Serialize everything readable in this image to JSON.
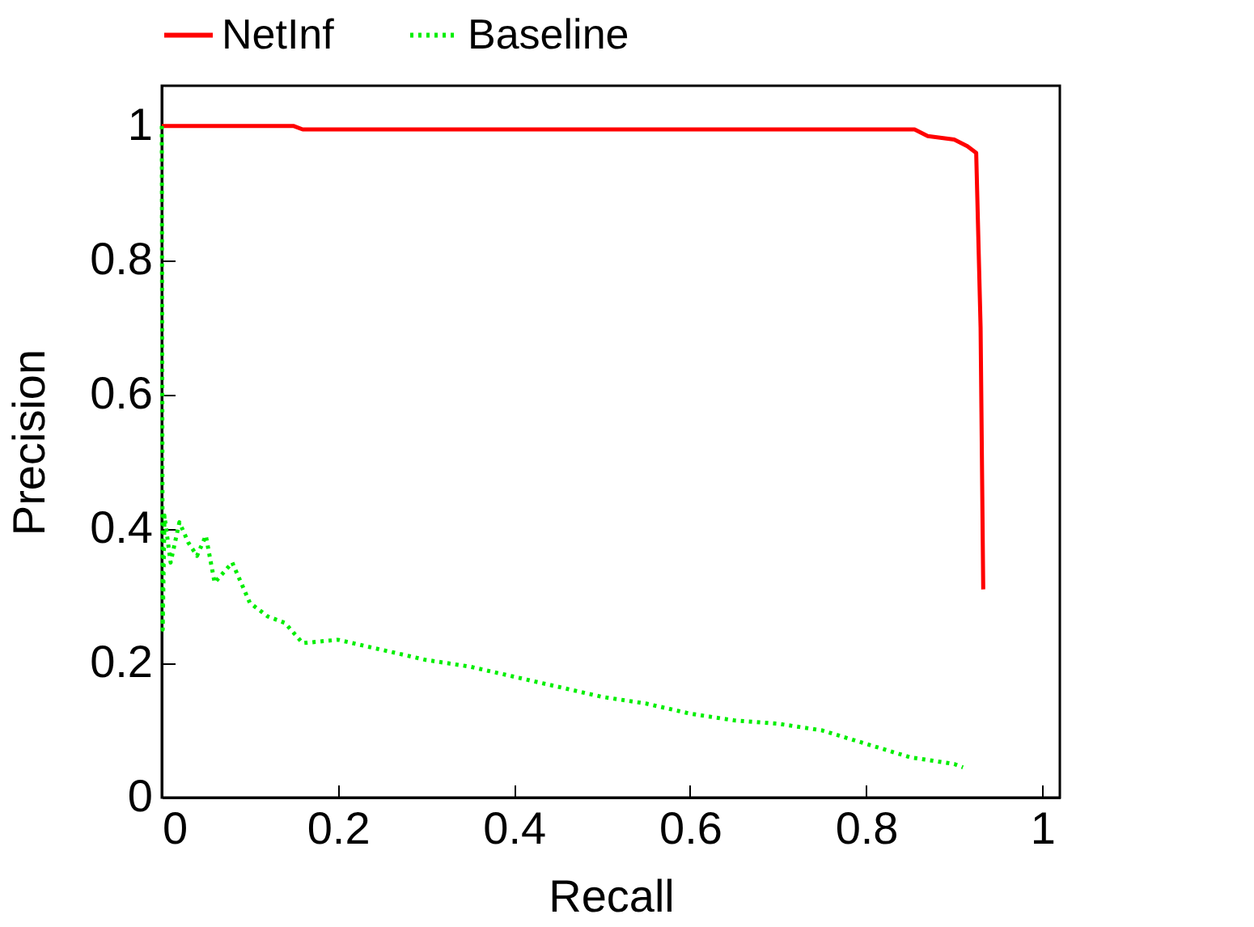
{
  "chart_data": {
    "type": "line",
    "xlabel": "Recall",
    "ylabel": "Precision",
    "xlim": [
      0,
      1.02
    ],
    "ylim": [
      0,
      1.06
    ],
    "xticks": [
      0,
      0.2,
      0.4,
      0.6,
      0.8,
      1
    ],
    "yticks": [
      0,
      0.2,
      0.4,
      0.6,
      0.8,
      1
    ],
    "legend": "top",
    "grid": false,
    "series": [
      {
        "name": "NetInf",
        "color": "#ff0000",
        "line_style": "solid",
        "x": [
          0,
          0.15,
          0.16,
          0.3,
          0.5,
          0.7,
          0.855,
          0.87,
          0.9,
          0.915,
          0.925,
          0.93,
          0.933
        ],
        "values": [
          1,
          1,
          0.995,
          0.995,
          0.995,
          0.995,
          0.995,
          0.985,
          0.98,
          0.97,
          0.96,
          0.7,
          0.31
        ]
      },
      {
        "name": "Baseline",
        "color": "#00ee00",
        "line_style": "dotted",
        "x": [
          0,
          0.001,
          0.003,
          0.01,
          0.02,
          0.03,
          0.04,
          0.05,
          0.06,
          0.08,
          0.1,
          0.12,
          0.14,
          0.16,
          0.2,
          0.25,
          0.3,
          0.35,
          0.4,
          0.45,
          0.5,
          0.55,
          0.6,
          0.65,
          0.7,
          0.75,
          0.8,
          0.85,
          0.9,
          0.91
        ],
        "values": [
          1,
          0.25,
          0.42,
          0.35,
          0.41,
          0.38,
          0.36,
          0.39,
          0.32,
          0.35,
          0.29,
          0.27,
          0.26,
          0.23,
          0.235,
          0.22,
          0.205,
          0.195,
          0.18,
          0.165,
          0.15,
          0.14,
          0.125,
          0.115,
          0.11,
          0.1,
          0.08,
          0.06,
          0.05,
          0.045
        ]
      }
    ]
  }
}
